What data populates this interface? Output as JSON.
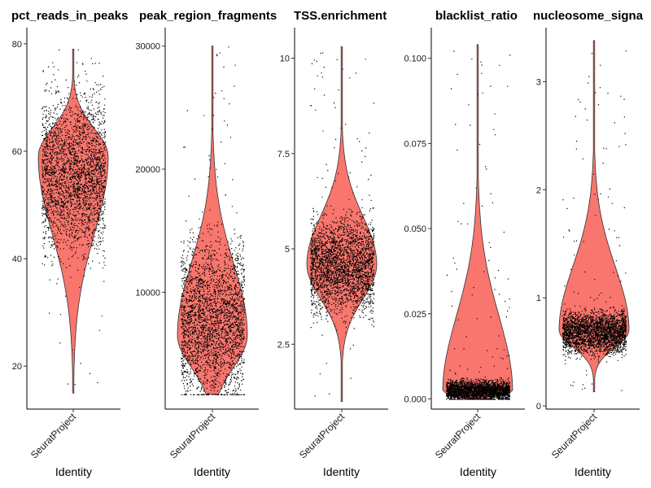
{
  "chart_data": [
    {
      "type": "violin",
      "title": "pct_reads_in_peaks",
      "xlabel": "Identity",
      "ylabel": "",
      "categories": [
        "SeuratProject"
      ],
      "yticks": [
        20,
        40,
        60,
        80
      ],
      "ylim": [
        12,
        83
      ],
      "fill_color": "#F8766D",
      "distribution": {
        "min": 15,
        "max": 79,
        "mode": 59,
        "median": 57,
        "q1": 48,
        "q3": 63
      }
    },
    {
      "type": "violin",
      "title": "peak_region_fragments",
      "xlabel": "Identity",
      "ylabel": "",
      "categories": [
        "SeuratProject"
      ],
      "yticks": [
        10000,
        20000,
        30000
      ],
      "ylim": [
        500,
        31500
      ],
      "fill_color": "#F8766D",
      "distribution": {
        "min": 1700,
        "max": 30000,
        "mode": 6500,
        "median": 7000,
        "q1": 4500,
        "q3": 11000
      }
    },
    {
      "type": "violin",
      "title": "TSS.enrichment",
      "xlabel": "Identity",
      "ylabel": "",
      "categories": [
        "SeuratProject"
      ],
      "yticks": [
        2.5,
        5.0,
        7.5,
        10.0
      ],
      "ylim": [
        0.8,
        10.8
      ],
      "fill_color": "#F8766D",
      "distribution": {
        "min": 1.0,
        "max": 10.3,
        "mode": 4.6,
        "median": 4.5,
        "q1": 3.9,
        "q3": 5.2
      }
    },
    {
      "type": "violin",
      "title": "blacklist_ratio",
      "xlabel": "Identity",
      "ylabel": "",
      "categories": [
        "SeuratProject"
      ],
      "yticks": [
        "0.000",
        "0.025",
        "0.050",
        "0.075",
        "0.100"
      ],
      "ylim": [
        -0.003,
        0.109
      ],
      "fill_color": "#F8766D",
      "distribution": {
        "min": 0.0,
        "max": 0.104,
        "mode": 0.002,
        "median": 0.002,
        "q1": 0.001,
        "q3": 0.004
      }
    },
    {
      "type": "violin",
      "title": "nucleosome_signa",
      "xlabel": "Identity",
      "ylabel": "",
      "categories": [
        "SeuratProject"
      ],
      "yticks": [
        0,
        1,
        2,
        3
      ],
      "ylim": [
        -0.03,
        3.5
      ],
      "fill_color": "#F8766D",
      "distribution": {
        "min": 0.13,
        "max": 3.38,
        "mode": 0.7,
        "median": 0.68,
        "q1": 0.58,
        "q3": 0.78
      }
    }
  ]
}
